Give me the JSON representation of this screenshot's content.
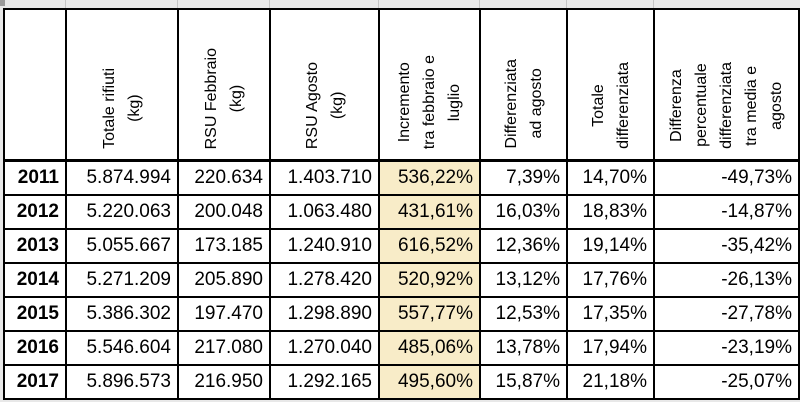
{
  "colors": {
    "highlight_cell": "#f8ecc8",
    "border": "#000000",
    "outside_strip": "#e8e8e8",
    "strip_gridline": "#c4c4c4",
    "corner_square": "#9a9a9a"
  },
  "chart_data": {
    "type": "table",
    "column_headers": [
      "",
      "Totale rifiuti\n(kg)",
      "RSU Febbraio\n(kg)",
      "RSU Agosto\n(kg)",
      "Incremento\ntra febbraio e\nluglio",
      "Differenziata\nad agosto",
      "Totale\ndifferenziata",
      "Differenza\npercentuale\ndifferenziata\ntra media e\nagosto"
    ],
    "highlighted_column": "Incremento tra febbraio e luglio",
    "highlight_value_index": 3,
    "rows": [
      {
        "year": "2011",
        "values": [
          "5.874.994",
          "220.634",
          "1.403.710",
          "536,22%",
          "7,39%",
          "14,70%",
          "-49,73%"
        ]
      },
      {
        "year": "2012",
        "values": [
          "5.220.063",
          "200.048",
          "1.063.480",
          "431,61%",
          "16,03%",
          "18,83%",
          "-14,87%"
        ]
      },
      {
        "year": "2013",
        "values": [
          "5.055.667",
          "173.185",
          "1.240.910",
          "616,52%",
          "12,36%",
          "19,14%",
          "-35,42%"
        ]
      },
      {
        "year": "2014",
        "values": [
          "5.271.209",
          "205.890",
          "1.278.420",
          "520,92%",
          "13,12%",
          "17,76%",
          "-26,13%"
        ]
      },
      {
        "year": "2015",
        "values": [
          "5.386.302",
          "197.470",
          "1.298.890",
          "557,77%",
          "12,53%",
          "17,35%",
          "-27,78%"
        ]
      },
      {
        "year": "2016",
        "values": [
          "5.546.604",
          "217.080",
          "1.270.040",
          "485,06%",
          "13,78%",
          "17,94%",
          "-23,19%"
        ]
      },
      {
        "year": "2017",
        "values": [
          "5.896.573",
          "216.950",
          "1.292.165",
          "495,60%",
          "15,87%",
          "21,18%",
          "-25,07%"
        ]
      }
    ]
  }
}
